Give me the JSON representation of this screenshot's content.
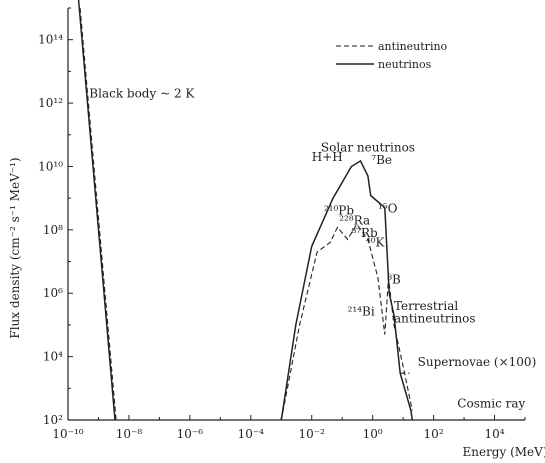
{
  "chart_data": {
    "type": "line",
    "xlabel": "Energy (MeV)",
    "ylabel": "Flux density (cm⁻² s⁻¹ MeV⁻¹)",
    "xscale": "log",
    "yscale": "log",
    "xlim": [
      1e-10,
      100000.0
    ],
    "ylim": [
      100.0,
      1000000000000000.0
    ],
    "x_ticks": [
      {
        "value": 1e-10,
        "label": "10⁻¹⁰"
      },
      {
        "value": 1e-08,
        "label": "10⁻⁸"
      },
      {
        "value": 1e-06,
        "label": "10⁻⁶"
      },
      {
        "value": 0.0001,
        "label": "10⁻⁴"
      },
      {
        "value": 0.01,
        "label": "10⁻²"
      },
      {
        "value": 1,
        "label": "10⁰"
      },
      {
        "value": 100.0,
        "label": "10²"
      },
      {
        "value": 10000.0,
        "label": "10⁴"
      }
    ],
    "y_ticks": [
      {
        "value": 100.0,
        "label": "10²"
      },
      {
        "value": 10000.0,
        "label": "10⁴"
      },
      {
        "value": 1000000.0,
        "label": "10⁶"
      },
      {
        "value": 100000000.0,
        "label": "10⁸"
      },
      {
        "value": 10000000000.0,
        "label": "10¹⁰"
      },
      {
        "value": 1000000000000.0,
        "label": "10¹²"
      },
      {
        "value": 100000000000000.0,
        "label": "10¹⁴"
      }
    ],
    "legend": {
      "placement": "top-right",
      "entries": [
        {
          "label": "antineutrino",
          "style": "dashed"
        },
        {
          "label": "neutrinos",
          "style": "solid"
        }
      ]
    },
    "series": [
      {
        "name": "neutrinos",
        "style": "solid",
        "segments": [
          [
            [
              2.2e-10,
              3000000000000000.0
            ],
            [
              3.5e-09,
              100.0
            ]
          ],
          [
            [
              0.001,
              100.0
            ],
            [
              0.003,
              100000.0
            ],
            [
              0.01,
              30000000.0
            ],
            [
              0.05,
              1000000000.0
            ],
            [
              0.2,
              10000000000.0
            ],
            [
              0.4,
              15000000000.0
            ],
            [
              0.7,
              5000000000.0
            ],
            [
              0.862,
              1200000000.0
            ],
            [
              2.5,
              500000000.0
            ],
            [
              3.5,
              1000000.0
            ],
            [
              5,
              200000.0
            ],
            [
              8,
              3000.0
            ],
            [
              18,
              200.0
            ],
            [
              20,
              100.0
            ]
          ]
        ]
      },
      {
        "name": "antineutrino",
        "style": "dashed",
        "segments": [
          [
            [
              2.5e-10,
              1000000000000000.0
            ],
            [
              3.8e-09,
              100.0
            ]
          ],
          [
            [
              0.001,
              100.0
            ],
            [
              0.004,
              100000.0
            ],
            [
              0.015,
              20000000.0
            ],
            [
              0.04,
              40000000.0
            ],
            [
              0.07,
              120000000.0
            ],
            [
              0.15,
              50000000.0
            ],
            [
              0.3,
              150000000.0
            ],
            [
              0.7,
              50000000.0
            ],
            [
              1.5,
              3000000.0
            ],
            [
              2.5,
              50000.0
            ],
            [
              3.3,
              3000000.0
            ],
            [
              5,
              100000.0
            ],
            [
              10,
              5000.0
            ],
            [
              20,
              200.0
            ]
          ],
          [
            [
              8,
              3000.0
            ],
            [
              16,
              3000.0
            ]
          ],
          [
            [
              18,
              100.0
            ],
            [
              50000.0,
              100.0
            ]
          ]
        ]
      }
    ],
    "annotations": [
      {
        "text": "Black body ~ 2 K",
        "x": 5e-10,
        "y": 1500000000000.0
      },
      {
        "text": "Solar neutrinos",
        "x": 0.02,
        "y": 30000000000.0
      },
      {
        "text": "H+H",
        "x": 0.01,
        "y": 15000000000.0
      },
      {
        "text": "⁷Be",
        "x": 0.9,
        "y": 12000000000.0
      },
      {
        "text": "¹⁵O",
        "x": 1.5,
        "y": 350000000.0
      },
      {
        "text": "²¹⁰Pb",
        "x": 0.025,
        "y": 300000000.0
      },
      {
        "text": "²²⁸Ra",
        "x": 0.08,
        "y": 150000000.0
      },
      {
        "text": "⁸⁷Rb",
        "x": 0.2,
        "y": 60000000.0
      },
      {
        "text": "⁴⁰K",
        "x": 0.6,
        "y": 30000000.0
      },
      {
        "text": "⁸B",
        "x": 3,
        "y": 2000000.0
      },
      {
        "text": "²¹⁴Bi",
        "x": 0.15,
        "y": 200000.0
      },
      {
        "text": "Terrestrial",
        "x": 5,
        "y": 300000.0
      },
      {
        "text": "antineutrinos",
        "x": 5,
        "y": 120000.0
      },
      {
        "text": "Supernovae (×100)",
        "x": 30,
        "y": 5000.0
      },
      {
        "text": "Cosmic ray",
        "x": 600,
        "y": 250.0
      }
    ]
  }
}
